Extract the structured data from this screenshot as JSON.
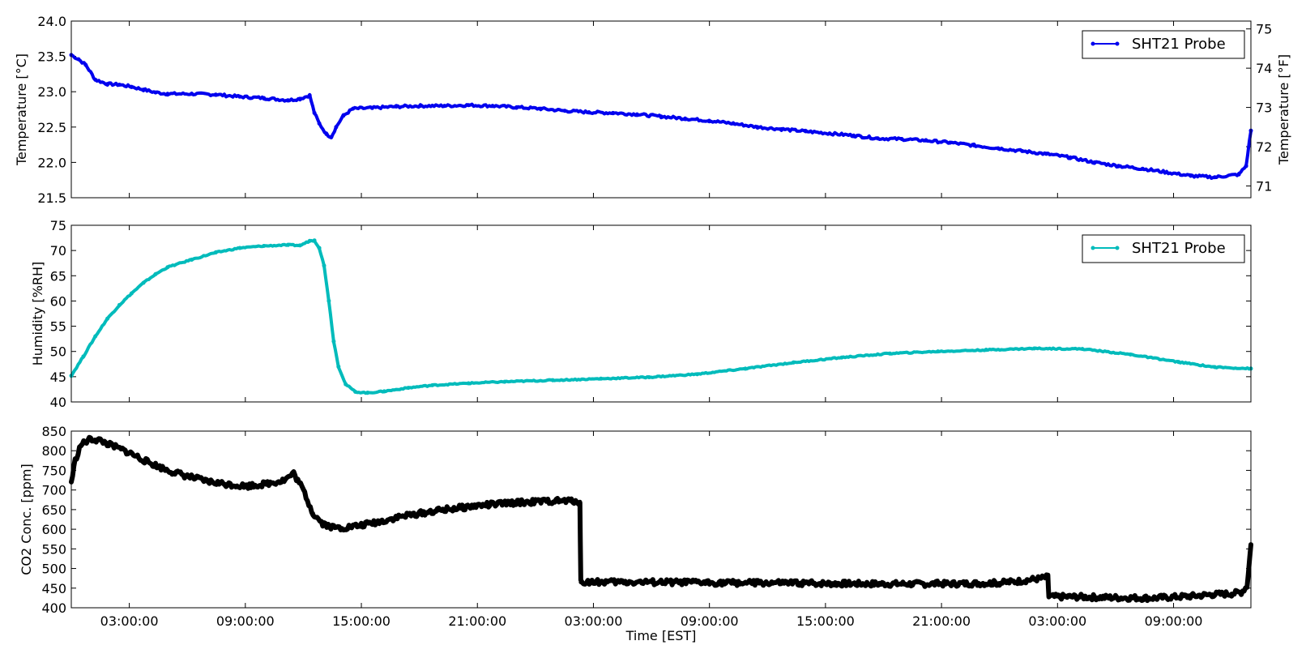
{
  "chart_data": [
    {
      "type": "line",
      "ylabel": "Temperature [°C]",
      "ylabel_right": "Temperature [°F]",
      "ylim": [
        21.5,
        24.0
      ],
      "yticks": [
        "21.5",
        "22.0",
        "22.5",
        "23.0",
        "23.5",
        "24.0"
      ],
      "yticks_right": [
        "71",
        "72",
        "73",
        "74",
        "75"
      ],
      "ylim_right": [
        70.7,
        75.2
      ],
      "legend": "top-right",
      "x_range_hours": [
        0,
        49
      ],
      "series": [
        {
          "name": "SHT21 Probe",
          "color": "#0000ee",
          "points": [
            [
              0,
              23.52
            ],
            [
              0.3,
              23.46
            ],
            [
              0.6,
              23.38
            ],
            [
              1.0,
              23.17
            ],
            [
              1.5,
              23.11
            ],
            [
              2.0,
              23.1
            ],
            [
              2.5,
              23.07
            ],
            [
              3.0,
              23.03
            ],
            [
              3.5,
              22.99
            ],
            [
              4.0,
              22.97
            ],
            [
              5.0,
              22.97
            ],
            [
              6.0,
              22.96
            ],
            [
              7.0,
              22.93
            ],
            [
              8.0,
              22.91
            ],
            [
              9.0,
              22.88
            ],
            [
              9.5,
              22.9
            ],
            [
              9.9,
              22.95
            ],
            [
              10.1,
              22.7
            ],
            [
              10.3,
              22.55
            ],
            [
              10.6,
              22.4
            ],
            [
              10.8,
              22.36
            ],
            [
              11.0,
              22.5
            ],
            [
              11.3,
              22.66
            ],
            [
              11.7,
              22.76
            ],
            [
              12.5,
              22.77
            ],
            [
              13.5,
              22.79
            ],
            [
              14.5,
              22.8
            ],
            [
              15.5,
              22.8
            ],
            [
              16.5,
              22.81
            ],
            [
              17.5,
              22.8
            ],
            [
              18.5,
              22.78
            ],
            [
              19.5,
              22.76
            ],
            [
              20.5,
              22.73
            ],
            [
              21.5,
              22.71
            ],
            [
              22.5,
              22.7
            ],
            [
              23.5,
              22.68
            ],
            [
              24.5,
              22.65
            ],
            [
              25.5,
              22.62
            ],
            [
              26.5,
              22.59
            ],
            [
              27.5,
              22.55
            ],
            [
              28.5,
              22.5
            ],
            [
              29.5,
              22.47
            ],
            [
              30.5,
              22.44
            ],
            [
              31.5,
              22.41
            ],
            [
              32.5,
              22.38
            ],
            [
              33.5,
              22.34
            ],
            [
              34.5,
              22.33
            ],
            [
              35.5,
              22.31
            ],
            [
              36.5,
              22.28
            ],
            [
              37.5,
              22.24
            ],
            [
              38.5,
              22.2
            ],
            [
              39.5,
              22.16
            ],
            [
              40.5,
              22.12
            ],
            [
              41.5,
              22.07
            ],
            [
              42.5,
              22.0
            ],
            [
              43.5,
              21.95
            ],
            [
              44.5,
              21.91
            ],
            [
              45.5,
              21.86
            ],
            [
              46.5,
              21.81
            ],
            [
              47.5,
              21.79
            ],
            [
              48.5,
              21.83
            ],
            [
              48.8,
              21.95
            ],
            [
              49.0,
              22.45
            ]
          ]
        }
      ]
    },
    {
      "type": "line",
      "ylabel": "Humidity [%RH]",
      "ylim": [
        40,
        75
      ],
      "yticks": [
        "40",
        "45",
        "50",
        "55",
        "60",
        "65",
        "70",
        "75"
      ],
      "legend": "top-right",
      "x_range_hours": [
        0,
        49
      ],
      "series": [
        {
          "name": "SHT21 Probe",
          "color": "#00bbbb",
          "points": [
            [
              0,
              45.2
            ],
            [
              0.5,
              49.0
            ],
            [
              1.0,
              53.0
            ],
            [
              1.5,
              56.5
            ],
            [
              2.0,
              59.2
            ],
            [
              2.5,
              61.5
            ],
            [
              3.0,
              63.6
            ],
            [
              3.5,
              65.3
            ],
            [
              4.0,
              66.7
            ],
            [
              5.0,
              68.2
            ],
            [
              6.0,
              69.6
            ],
            [
              7.0,
              70.5
            ],
            [
              8.0,
              70.9
            ],
            [
              9.0,
              71.1
            ],
            [
              9.5,
              71.0
            ],
            [
              9.9,
              71.9
            ],
            [
              10.1,
              72.0
            ],
            [
              10.3,
              70.5
            ],
            [
              10.5,
              67.0
            ],
            [
              10.7,
              60.0
            ],
            [
              10.9,
              52.0
            ],
            [
              11.1,
              47.0
            ],
            [
              11.4,
              43.5
            ],
            [
              11.8,
              42.0
            ],
            [
              12.3,
              41.8
            ],
            [
              13.0,
              42.1
            ],
            [
              14.0,
              42.8
            ],
            [
              15.0,
              43.3
            ],
            [
              16.5,
              43.7
            ],
            [
              18.0,
              44.0
            ],
            [
              20.0,
              44.3
            ],
            [
              22.0,
              44.6
            ],
            [
              24.0,
              44.9
            ],
            [
              26.0,
              45.5
            ],
            [
              28.0,
              46.6
            ],
            [
              30.0,
              47.8
            ],
            [
              32.0,
              48.8
            ],
            [
              34.0,
              49.6
            ],
            [
              36.0,
              50.0
            ],
            [
              38.0,
              50.3
            ],
            [
              40.0,
              50.6
            ],
            [
              42.0,
              50.5
            ],
            [
              44.0,
              49.4
            ],
            [
              46.0,
              47.9
            ],
            [
              47.5,
              46.9
            ],
            [
              49.0,
              46.6
            ]
          ]
        }
      ]
    },
    {
      "type": "line",
      "ylabel": "CO2 Conc. [ppm]",
      "ylim": [
        400,
        850
      ],
      "yticks": [
        "400",
        "450",
        "500",
        "550",
        "600",
        "650",
        "700",
        "750",
        "800",
        "850"
      ],
      "xlabel": "Time [EST]",
      "xticks": [
        "03:00:00",
        "09:00:00",
        "15:00:00",
        "21:00:00",
        "03:00:00",
        "09:00:00",
        "15:00:00",
        "21:00:00",
        "03:00:00",
        "09:00:00"
      ],
      "xtick_hours": [
        3,
        9,
        15,
        21,
        27,
        33,
        39,
        45,
        51,
        57
      ],
      "x_range_hours": [
        0,
        61
      ],
      "series": [
        {
          "name": "",
          "color": "#000000",
          "points": [
            [
              0,
              720
            ],
            [
              0.2,
              775
            ],
            [
              0.5,
              815
            ],
            [
              1.0,
              830
            ],
            [
              1.5,
              826
            ],
            [
              2.0,
              815
            ],
            [
              3.0,
              795
            ],
            [
              4.0,
              770
            ],
            [
              5.0,
              750
            ],
            [
              6.0,
              735
            ],
            [
              7.0,
              722
            ],
            [
              8.0,
              715
            ],
            [
              9.0,
              710
            ],
            [
              10.0,
              715
            ],
            [
              11.0,
              725
            ],
            [
              11.5,
              742
            ],
            [
              12.0,
              700
            ],
            [
              12.5,
              640
            ],
            [
              13.0,
              615
            ],
            [
              13.5,
              605
            ],
            [
              14.0,
              603
            ],
            [
              15.0,
              610
            ],
            [
              16.0,
              620
            ],
            [
              17.0,
              632
            ],
            [
              18.0,
              640
            ],
            [
              19.0,
              648
            ],
            [
              20.0,
              654
            ],
            [
              21.0,
              660
            ],
            [
              22.0,
              664
            ],
            [
              23.0,
              668
            ],
            [
              24.0,
              670
            ],
            [
              25.0,
              672
            ],
            [
              26.0,
              672
            ],
            [
              26.3,
              670
            ],
            [
              26.35,
              465
            ],
            [
              27.0,
              466
            ],
            [
              30.0,
              465
            ],
            [
              33.0,
              464
            ],
            [
              36.0,
              463
            ],
            [
              39.0,
              462
            ],
            [
              42.0,
              461
            ],
            [
              45.0,
              461
            ],
            [
              48.0,
              463
            ],
            [
              49.0,
              468
            ],
            [
              50.0,
              474
            ],
            [
              50.5,
              478
            ],
            [
              50.55,
              428
            ],
            [
              52.0,
              428
            ],
            [
              54.0,
              426
            ],
            [
              56.0,
              425
            ],
            [
              58.0,
              430
            ],
            [
              59.0,
              434
            ],
            [
              60.0,
              436
            ],
            [
              60.5,
              440
            ],
            [
              60.8,
              455
            ],
            [
              61.0,
              560
            ]
          ]
        }
      ]
    }
  ]
}
